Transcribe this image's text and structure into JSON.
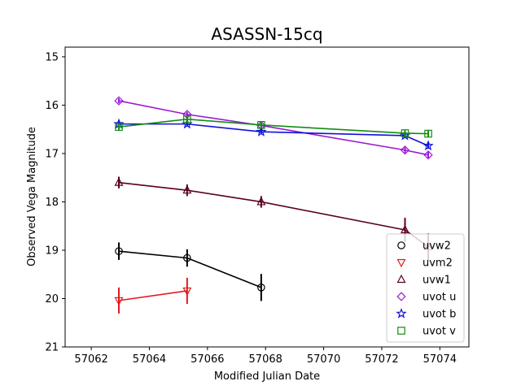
{
  "chart_data": {
    "type": "line",
    "title": "ASASSN-15cq",
    "xlabel": "Modified Julian Date",
    "ylabel": "Observed Vega Magnitude",
    "xlim": [
      57061.1,
      57075.0
    ],
    "ylim": [
      21,
      14.8
    ],
    "y_inverted": true,
    "x_ticks": [
      57062,
      57064,
      57066,
      57068,
      57070,
      57072,
      57074
    ],
    "y_ticks": [
      15,
      16,
      17,
      18,
      19,
      20,
      21
    ],
    "grid": false,
    "legend_position": "lower-right",
    "series": [
      {
        "name": "uvw2",
        "marker": "circle",
        "color": "#000000",
        "x": [
          57062.95,
          57065.3,
          57067.85
        ],
        "y": [
          19.02,
          19.16,
          19.77
        ],
        "err": [
          0.18,
          0.18,
          0.28
        ]
      },
      {
        "name": "uvm2",
        "marker": "triangle-down",
        "color": "#e31a1c",
        "x": [
          57062.95,
          57065.3
        ],
        "y": [
          20.04,
          19.84
        ],
        "err": [
          0.27,
          0.27
        ]
      },
      {
        "name": "uvw1",
        "marker": "triangle-up",
        "color": "#5a0020",
        "x": [
          57062.95,
          57065.3,
          57067.85,
          57072.8,
          57073.6
        ],
        "y": [
          17.6,
          17.76,
          18.0,
          18.58,
          18.93
        ],
        "err": [
          0.12,
          0.12,
          0.12,
          0.25,
          0.28
        ]
      },
      {
        "name": "uvot u",
        "marker": "diamond",
        "color": "#9b19d6",
        "x": [
          57062.95,
          57065.3,
          57067.85,
          57072.8,
          57073.6
        ],
        "y": [
          15.91,
          16.19,
          16.42,
          16.93,
          17.03
        ],
        "err": [
          0.05,
          0.05,
          0.05,
          0.06,
          0.06
        ]
      },
      {
        "name": "uvot b",
        "marker": "star",
        "color": "#1111d8",
        "x": [
          57062.95,
          57065.3,
          57067.85,
          57072.8,
          57073.6
        ],
        "y": [
          16.39,
          16.39,
          16.55,
          16.63,
          16.84
        ],
        "err": [
          0.05,
          0.05,
          0.05,
          0.05,
          0.06
        ]
      },
      {
        "name": "uvot v",
        "marker": "square",
        "color": "#138c13",
        "x": [
          57062.95,
          57065.3,
          57067.85,
          57072.8,
          57073.6
        ],
        "y": [
          16.45,
          16.29,
          16.41,
          16.58,
          16.59
        ],
        "err": [
          0.06,
          0.06,
          0.06,
          0.06,
          0.07
        ]
      }
    ]
  }
}
